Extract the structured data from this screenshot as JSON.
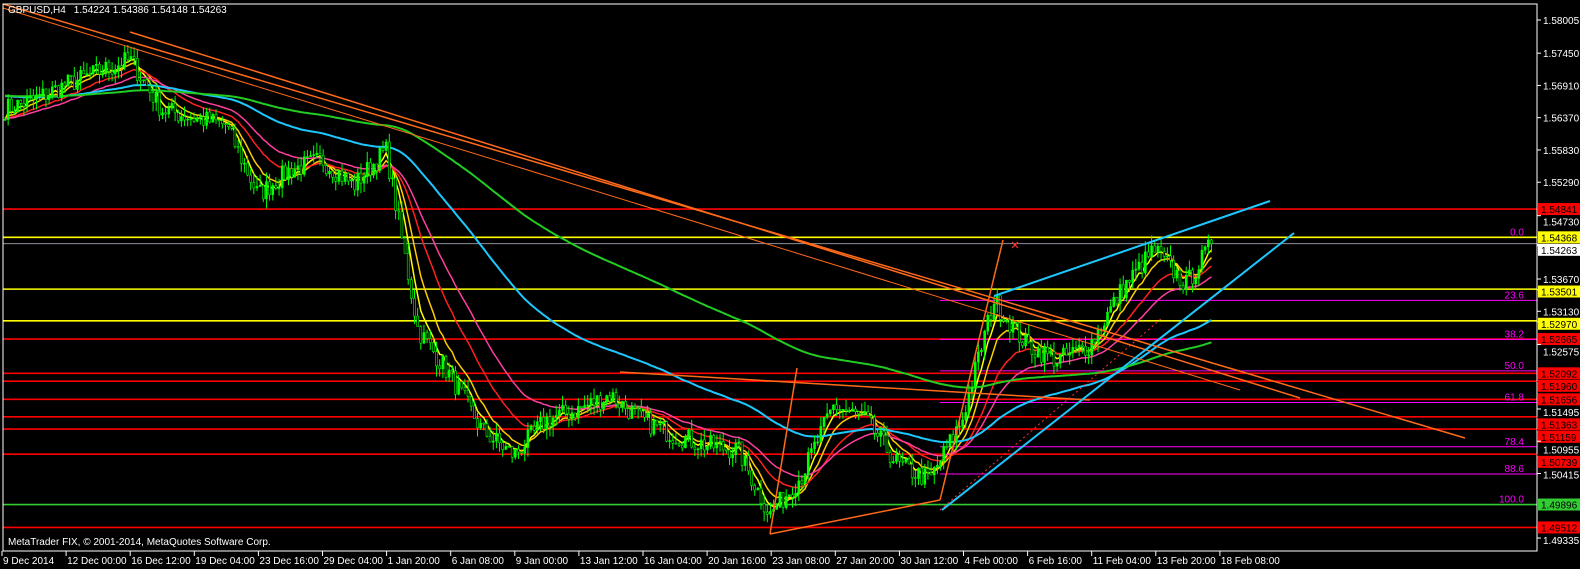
{
  "header": {
    "symbol": "GBPUSD,H4",
    "ohlc": "1.54224 1.54386 1.54148 1.54263"
  },
  "footer": {
    "copyright": "MetaTrader FIX, © 2001-2014, MetaQuotes Software Corp."
  },
  "colors": {
    "background": "#000000",
    "bull": "#00ff00",
    "axis": "#ffffff",
    "fib": "#ff00ff",
    "trend": "#ff6a1a",
    "channel": "#1ec8ff"
  },
  "chart_data": {
    "type": "candlestick",
    "title": "GBPUSD,H4",
    "ylim": [
      1.4925,
      1.5815
    ],
    "y_ticks": [
      "1.58005",
      "1.57450",
      "1.56910",
      "1.56370",
      "1.55830",
      "1.55290",
      "1.54730",
      "1.53670",
      "1.53130",
      "1.52575",
      "1.51495",
      "1.50955",
      "1.50415",
      "1.49335"
    ],
    "x_ticks": [
      "9 Dec 2014",
      "12 Dec 00:00",
      "16 Dec 12:00",
      "19 Dec 04:00",
      "23 Dec 16:00",
      "29 Dec 04:00",
      "1 Jan 20:00",
      "6 Jan 08:00",
      "9 Jan 00:00",
      "13 Jan 12:00",
      "16 Jan 04:00",
      "20 Jan 16:00",
      "23 Jan 08:00",
      "27 Jan 20:00",
      "30 Jan 12:00",
      "4 Feb 00:00",
      "6 Feb 16:00",
      "11 Feb 04:00",
      "13 Feb 20:00",
      "18 Feb 08:00"
    ],
    "approx_close_path": [
      1.565,
      1.5667,
      1.5692,
      1.5713,
      1.5734,
      1.565,
      1.5637,
      1.5625,
      1.5508,
      1.5549,
      1.5566,
      1.5524,
      1.5583,
      1.5282,
      1.5206,
      1.5114,
      1.5072,
      1.5131,
      1.5148,
      1.5173,
      1.5131,
      1.5106,
      1.5089,
      1.5081,
      1.4972,
      1.5039,
      1.5156,
      1.5131,
      1.5056,
      1.5031,
      1.5131,
      1.5332,
      1.5257,
      1.5231,
      1.5257,
      1.5349,
      1.5416,
      1.5357,
      1.54263
    ],
    "current_price": "1.54263",
    "levels": [
      {
        "price": "1.54841",
        "color": "#ff0000",
        "text_color": "#000000"
      },
      {
        "price": "1.54368",
        "color": "#ffff00",
        "text_color": "#000000"
      },
      {
        "price": "1.53501",
        "color": "#ffff00",
        "text_color": "#000000"
      },
      {
        "price": "1.52970",
        "color": "#ffff00",
        "text_color": "#000000"
      },
      {
        "price": "1.52665",
        "color": "#ff0000",
        "text_color": "#000000"
      },
      {
        "price": "1.52092",
        "color": "#ff0000",
        "text_color": "#000000"
      },
      {
        "price": "1.51960",
        "color": "#ff0000",
        "text_color": "#000000"
      },
      {
        "price": "1.51656",
        "color": "#ff0000",
        "text_color": "#000000"
      },
      {
        "price": "1.51363",
        "color": "#ff0000",
        "text_color": "#000000"
      },
      {
        "price": "1.51159",
        "color": "#ff0000",
        "text_color": "#000000"
      },
      {
        "price": "1.50739",
        "color": "#ff0000",
        "text_color": "#000000"
      },
      {
        "price": "1.49896",
        "color": "#33cc33",
        "text_color": "#000000"
      },
      {
        "price": "1.49512",
        "color": "#ff0000",
        "text_color": "#000000"
      }
    ],
    "fibonacci": {
      "high": 1.54368,
      "low": 1.49896,
      "levels": [
        {
          "label": "0.0",
          "ratio": 0
        },
        {
          "label": "23.6",
          "ratio": 0.236
        },
        {
          "label": "38.2",
          "ratio": 0.382
        },
        {
          "label": "50.0",
          "ratio": 0.5
        },
        {
          "label": "61.8",
          "ratio": 0.618
        },
        {
          "label": "78.4",
          "ratio": 0.784
        },
        {
          "label": "88.6",
          "ratio": 0.886
        },
        {
          "label": "100.0",
          "ratio": 1
        }
      ]
    },
    "moving_averages": [
      {
        "period": 5,
        "color": "#ffff00"
      },
      {
        "period": 10,
        "color": "#ffcc00"
      },
      {
        "period": 21,
        "color": "#ff2020"
      },
      {
        "period": 34,
        "color": "#ff3fa0"
      },
      {
        "period": 89,
        "color": "#1ec8ff"
      },
      {
        "period": 200,
        "color": "#22cc22"
      }
    ]
  }
}
